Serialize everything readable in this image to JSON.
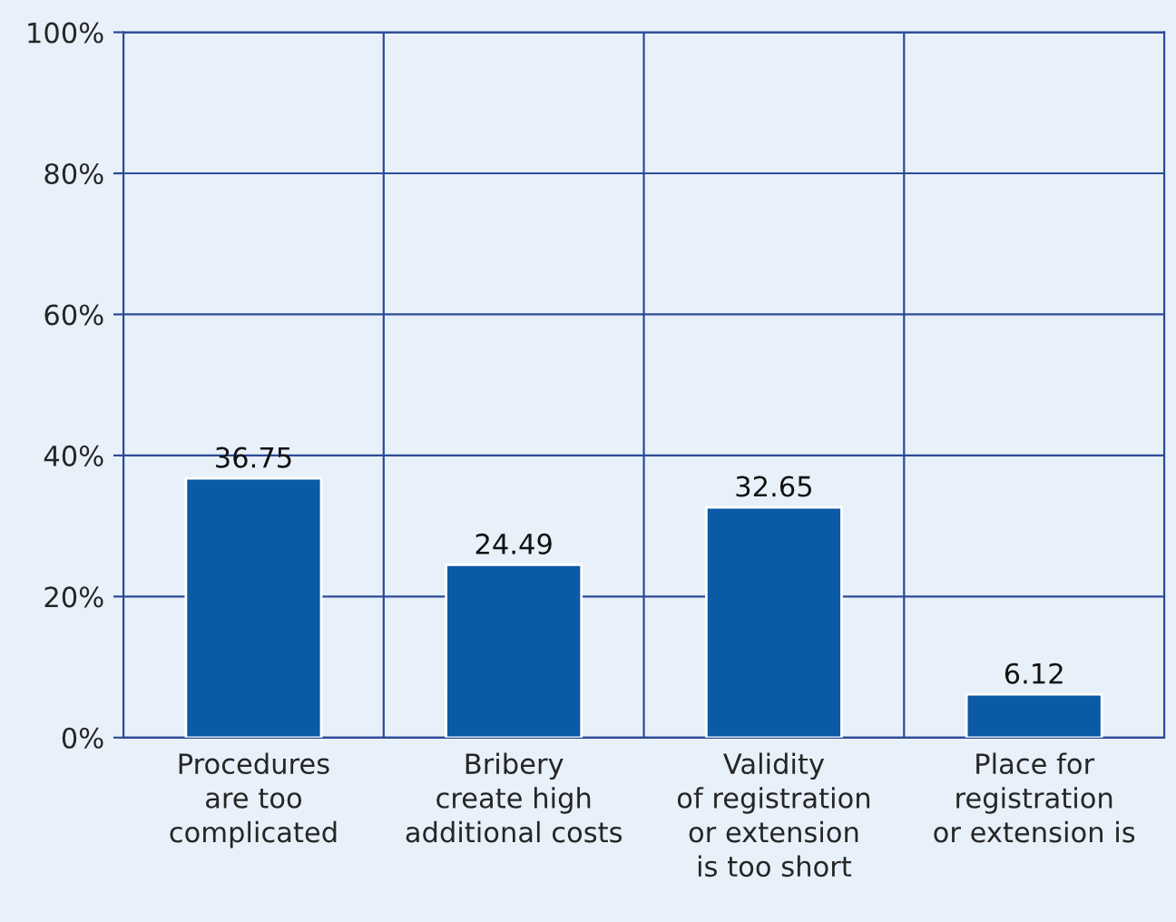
{
  "chart_data": {
    "type": "bar",
    "categories": [
      "Procedures\nare too\ncomplicated",
      "Bribery\ncreate high\nadditional costs",
      "Validity\nof registration\nor extension\nis too short",
      "Place for\nregistration\nor extension is"
    ],
    "values": [
      36.75,
      24.49,
      32.65,
      6.12
    ],
    "color": "#0b5aa6",
    "data_labels": true,
    "ylim": [
      0,
      100
    ],
    "yticks": [
      {
        "value": 0,
        "label": "0%"
      },
      {
        "value": 20,
        "label": "20%"
      },
      {
        "value": 40,
        "label": "40%"
      },
      {
        "value": 60,
        "label": "60%"
      },
      {
        "value": 80,
        "label": "80%"
      },
      {
        "value": 100,
        "label": "100%"
      }
    ],
    "grid": true
  }
}
